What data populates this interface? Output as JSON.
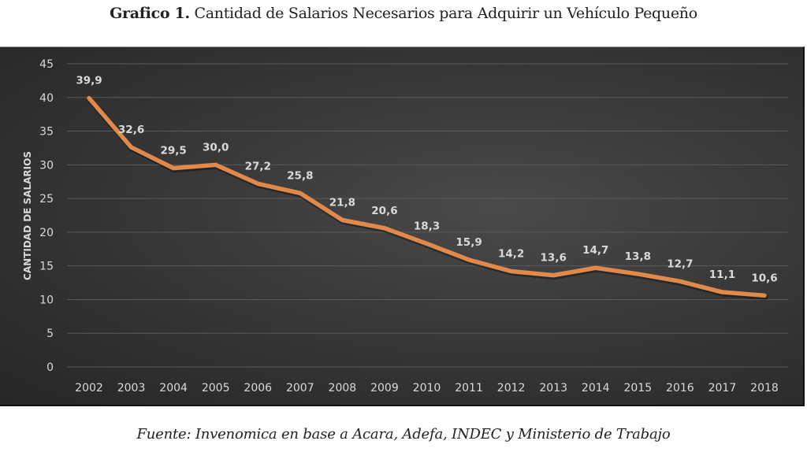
{
  "header": {
    "title_bold": "Grafico 1.",
    "title_rest": " Cantidad de Salarios Necesarios para Adquirir un Vehículo Pequeño"
  },
  "footer": {
    "source": "Fuente: Invenomica en base a Acara, Adefa, INDEC y Ministerio de Trabajo"
  },
  "colors": {
    "line": "#e0894a",
    "grid": "#5a5a5a",
    "text": "#d9d9d9"
  },
  "chart_data": {
    "type": "line",
    "title": "Grafico 1. Cantidad de Salarios Necesarios para Adquirir un Vehículo Pequeño",
    "xlabel": "",
    "ylabel": "CANTIDAD DE SALARIOS",
    "ylim": [
      0,
      45
    ],
    "yticks": [
      0,
      5,
      10,
      15,
      20,
      25,
      30,
      35,
      40,
      45
    ],
    "grid": true,
    "legend": "none",
    "categories": [
      "2002",
      "2003",
      "2004",
      "2005",
      "2006",
      "2007",
      "2008",
      "2009",
      "2010",
      "2011",
      "2012",
      "2013",
      "2014",
      "2015",
      "2016",
      "2017",
      "2018"
    ],
    "series": [
      {
        "name": "Cantidad de salarios",
        "values": [
          39.9,
          32.6,
          29.5,
          30.0,
          27.2,
          25.8,
          21.8,
          20.6,
          18.3,
          15.9,
          14.2,
          13.6,
          14.7,
          13.8,
          12.7,
          11.1,
          10.6
        ],
        "labels": [
          "39,9",
          "32,6",
          "29,5",
          "30,0",
          "27,2",
          "25,8",
          "21,8",
          "20,6",
          "18,3",
          "15,9",
          "14,2",
          "13,6",
          "14,7",
          "13,8",
          "12,7",
          "11,1",
          "10,6"
        ]
      }
    ]
  }
}
